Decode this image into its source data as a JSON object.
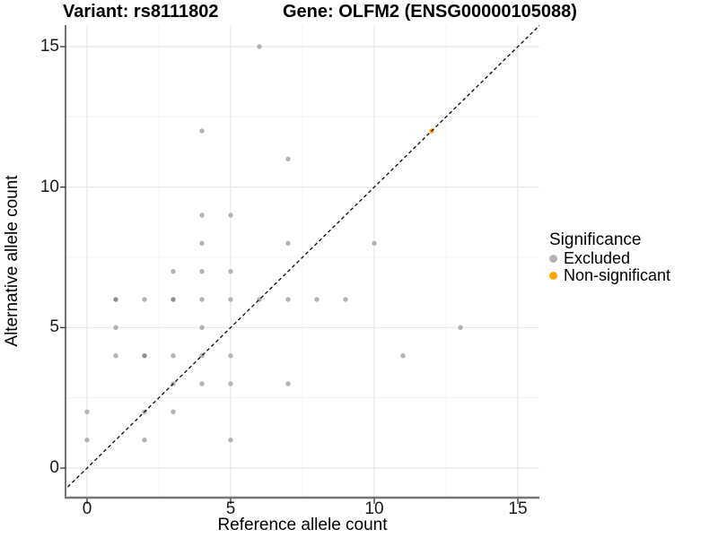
{
  "chart_data": {
    "type": "scatter",
    "title_left": "Variant: rs8111802",
    "title_right": "Gene: OLFM2 (ENSG00000105088)",
    "xlabel": "Reference allele count",
    "ylabel": "Alternative allele count",
    "x_ticks": [
      0,
      5,
      10,
      15
    ],
    "y_ticks": [
      0,
      5,
      10,
      15
    ],
    "minor_gridlines": [
      2.5,
      7.5,
      12.5
    ],
    "xlim": [
      -0.75,
      15.75
    ],
    "ylim": [
      -0.75,
      15.75
    ],
    "grid": "on",
    "reference_line": "dashed y = x diagonal",
    "legend": {
      "title": "Significance",
      "position": "right",
      "items": [
        {
          "label": "Excluded",
          "color": "#b4b4b4"
        },
        {
          "label": "Non-significant",
          "color": "#FFA500"
        }
      ]
    },
    "series": [
      {
        "name": "Excluded",
        "color": "#b4b4b4",
        "points": [
          [
            6,
            15
          ],
          [
            4,
            12
          ],
          [
            7,
            11
          ],
          [
            4,
            9
          ],
          [
            5,
            9
          ],
          [
            4,
            8
          ],
          [
            7,
            8
          ],
          [
            10,
            8
          ],
          [
            3,
            7
          ],
          [
            4,
            7
          ],
          [
            5,
            7
          ],
          [
            1,
            6
          ],
          [
            2,
            6
          ],
          [
            3,
            6
          ],
          [
            4,
            6
          ],
          [
            5,
            6
          ],
          [
            6,
            6
          ],
          [
            7,
            6
          ],
          [
            8,
            6
          ],
          [
            9,
            6
          ],
          [
            1,
            5
          ],
          [
            4,
            5
          ],
          [
            13,
            5
          ],
          [
            1,
            4
          ],
          [
            2,
            4
          ],
          [
            3,
            4
          ],
          [
            4,
            4
          ],
          [
            5,
            4
          ],
          [
            11,
            4
          ],
          [
            3,
            3
          ],
          [
            4,
            3
          ],
          [
            5,
            3
          ],
          [
            7,
            3
          ],
          [
            0,
            2
          ],
          [
            2,
            2
          ],
          [
            3,
            2
          ],
          [
            0,
            1
          ],
          [
            2,
            1
          ],
          [
            5,
            1
          ]
        ]
      },
      {
        "name": "Non-significant",
        "color": "#FFA500",
        "points": [
          [
            12,
            12
          ]
        ]
      }
    ],
    "overplotted_darker_points": [
      [
        1,
        6
      ],
      [
        3,
        6
      ],
      [
        2,
        4
      ]
    ],
    "darker_color": "#919191",
    "gridline_major_color": "#e7e7e7",
    "gridline_minor_color": "#f3f3f3",
    "axis_line_left_color": "#383838",
    "axis_line_bottom_color": "#757575",
    "diagonal_color": "#000000"
  }
}
